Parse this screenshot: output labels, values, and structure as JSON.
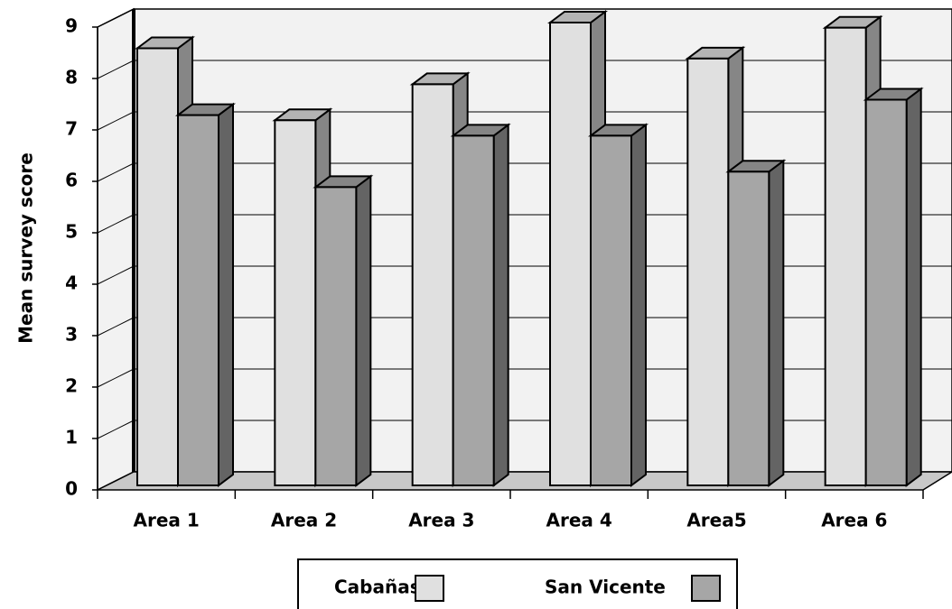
{
  "chart_data": {
    "type": "bar3d",
    "y_label": "Mean survey score",
    "categories": [
      "Area 1",
      "Area 2",
      "Area 3",
      "Area 4",
      "Area5",
      "Area 6"
    ],
    "series": [
      {
        "name": "Cabañas",
        "color": "#e0e0e0",
        "values": [
          8.5,
          7.1,
          7.8,
          9.0,
          8.3,
          8.9
        ]
      },
      {
        "name": "San Vicente",
        "color": "#a6a6a6",
        "values": [
          7.2,
          5.8,
          6.8,
          6.8,
          6.1,
          7.5
        ]
      }
    ],
    "ylim": [
      0,
      9
    ],
    "yticks": [
      0,
      1,
      2,
      3,
      4,
      5,
      6,
      7,
      8,
      9
    ],
    "grid": true
  }
}
